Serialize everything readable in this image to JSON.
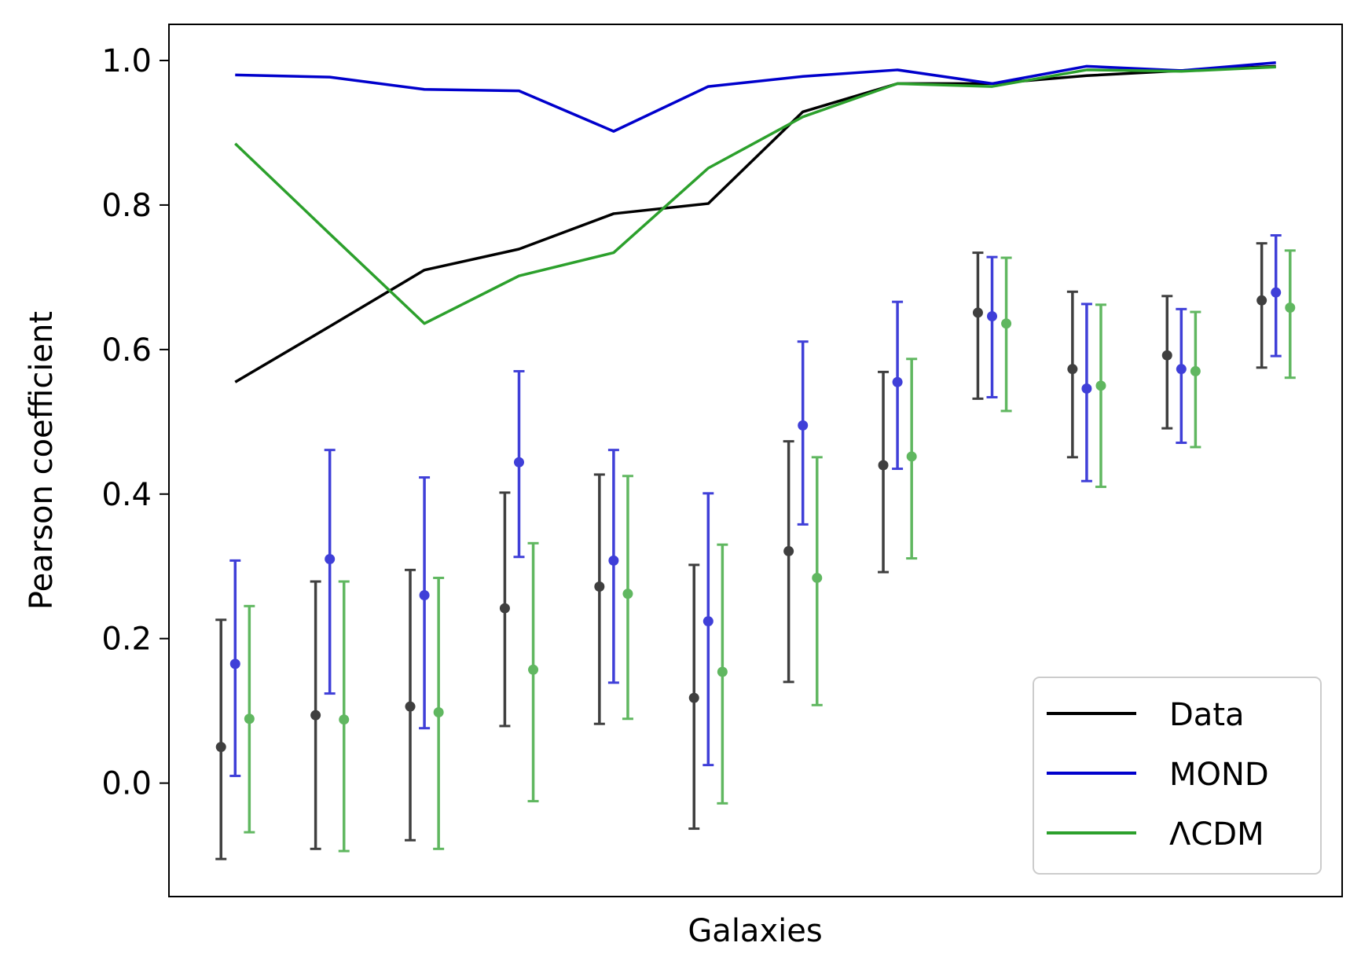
{
  "chart_data": {
    "type": "line",
    "title": "",
    "xlabel": "Galaxies",
    "ylabel": "Pearson coefficient",
    "ylim": [
      -0.157,
      1.05
    ],
    "yticks": [
      0.0,
      0.2,
      0.4,
      0.6,
      0.8,
      1.0
    ],
    "ytick_labels": [
      "0.0",
      "0.2",
      "0.4",
      "0.6",
      "0.8",
      "1.0"
    ],
    "x": [
      1,
      2,
      3,
      4,
      5,
      6,
      7,
      8,
      9,
      10,
      11,
      12
    ],
    "xlim": [
      0.3,
      12.7
    ],
    "grid": false,
    "legend_position": "lower-right",
    "series": [
      {
        "name": "Data",
        "color": "#000000",
        "line": [
          0.555,
          0.632,
          0.71,
          0.739,
          0.788,
          0.802,
          0.929,
          0.968,
          0.968,
          0.979,
          0.986,
          0.992
        ],
        "points": [
          0.05,
          0.094,
          0.106,
          0.242,
          0.272,
          0.118,
          0.321,
          0.44,
          0.651,
          0.573,
          0.592,
          0.668
        ],
        "err_low": [
          -0.105,
          -0.091,
          -0.079,
          0.079,
          0.082,
          -0.063,
          0.14,
          0.292,
          0.532,
          0.451,
          0.491,
          0.575
        ],
        "err_high": [
          0.226,
          0.279,
          0.295,
          0.402,
          0.427,
          0.302,
          0.473,
          0.569,
          0.734,
          0.68,
          0.674,
          0.747
        ]
      },
      {
        "name": "MOND",
        "color": "#0000cc",
        "line": [
          0.98,
          0.977,
          0.96,
          0.958,
          0.902,
          0.964,
          0.978,
          0.987,
          0.968,
          0.992,
          0.986,
          0.997
        ],
        "points": [
          0.165,
          0.31,
          0.26,
          0.444,
          0.308,
          0.224,
          0.495,
          0.555,
          0.646,
          0.546,
          0.573,
          0.679
        ],
        "err_low": [
          0.01,
          0.124,
          0.076,
          0.313,
          0.139,
          0.025,
          0.358,
          0.435,
          0.534,
          0.418,
          0.471,
          0.591
        ],
        "err_high": [
          0.308,
          0.461,
          0.423,
          0.57,
          0.461,
          0.401,
          0.611,
          0.666,
          0.728,
          0.663,
          0.656,
          0.758
        ]
      },
      {
        "name": "ΛCDM",
        "color": "#2ca02c",
        "line": [
          0.885,
          0.76,
          0.636,
          0.702,
          0.734,
          0.851,
          0.922,
          0.968,
          0.964,
          0.987,
          0.985,
          0.991
        ],
        "points": [
          0.089,
          0.088,
          0.098,
          0.157,
          0.262,
          0.154,
          0.284,
          0.452,
          0.636,
          0.55,
          0.57,
          0.658
        ],
        "err_low": [
          -0.068,
          -0.094,
          -0.091,
          -0.025,
          0.089,
          -0.028,
          0.108,
          0.311,
          0.515,
          0.41,
          0.465,
          0.561
        ],
        "err_high": [
          0.245,
          0.279,
          0.284,
          0.332,
          0.425,
          0.33,
          0.451,
          0.587,
          0.727,
          0.662,
          0.652,
          0.737
        ]
      }
    ]
  }
}
